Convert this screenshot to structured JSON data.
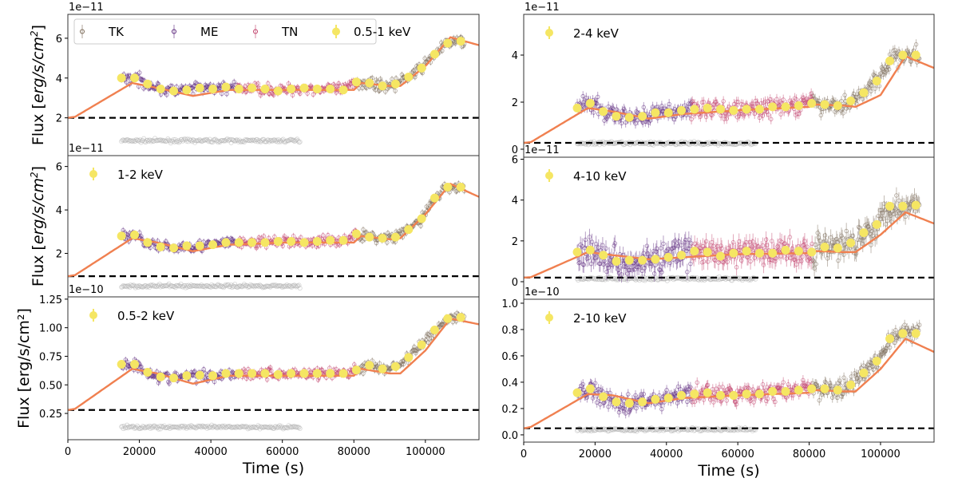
{
  "chart_data": {
    "type": "scatter",
    "xlabel": "Time (s)",
    "ylabel": "Flux [erg/s/cm²]",
    "xlim": [
      0,
      115000
    ],
    "xticks": [
      0,
      20000,
      40000,
      60000,
      80000,
      100000
    ],
    "legend": {
      "placement": "top-left",
      "entries": [
        "TK",
        "ME",
        "TN",
        "0.5-1 keV"
      ]
    },
    "instruments": [
      {
        "name": "TK",
        "color": "#7b6a58",
        "time_range": [
          81000,
          111000
        ]
      },
      {
        "name": "ME",
        "color": "#5e2a7e",
        "time_range": [
          15000,
          47000
        ]
      },
      {
        "name": "TN",
        "color": "#c0406a",
        "time_range": [
          47000,
          81000
        ]
      }
    ],
    "colors": {
      "binned": "#f5e663",
      "model": "#f08050",
      "background": "#b0b0b0",
      "baseline": "#000000"
    },
    "binned_times": [
      15000,
      18650,
      22300,
      25950,
      29600,
      33250,
      36900,
      40550,
      44200,
      47850,
      51500,
      55150,
      58800,
      62450,
      66100,
      69750,
      73400,
      77050,
      80700,
      84350,
      88000,
      91650,
      95300,
      98950,
      102600,
      106250,
      109900
    ],
    "model_times": [
      0,
      2000,
      18000,
      25000,
      35000,
      45000,
      60000,
      80000,
      82000,
      90000,
      93000,
      100000,
      107000,
      115000
    ],
    "background_time_range": [
      15000,
      65000
    ],
    "panels": [
      {
        "band": "0.5-1 keV",
        "offset": "1e−11",
        "ylim": [
          0.1,
          7.2
        ],
        "yticks": [
          2,
          4,
          6
        ],
        "ytick_labels": [
          "2",
          "4",
          "6"
        ],
        "baseline": 2.0,
        "background_level": 0.85,
        "binned": [
          4.0,
          4.0,
          3.7,
          3.45,
          3.35,
          3.4,
          3.5,
          3.45,
          3.55,
          3.45,
          3.5,
          3.45,
          3.35,
          3.45,
          3.5,
          3.45,
          3.45,
          3.4,
          3.8,
          3.75,
          3.6,
          3.7,
          4.05,
          4.5,
          5.2,
          5.75,
          5.85
        ],
        "model": [
          2.0,
          2.05,
          3.75,
          3.5,
          3.1,
          3.4,
          3.4,
          3.4,
          3.75,
          3.6,
          3.6,
          4.6,
          6.05,
          5.65
        ]
      },
      {
        "band": "1-2 keV",
        "offset": "1e−11",
        "ylim": [
          0,
          6.5
        ],
        "yticks": [
          2,
          4,
          6
        ],
        "ytick_labels": [
          "2",
          "4",
          "6"
        ],
        "baseline": 0.95,
        "background_level": 0.5,
        "binned": [
          2.8,
          2.85,
          2.5,
          2.3,
          2.25,
          2.35,
          2.35,
          2.4,
          2.5,
          2.5,
          2.5,
          2.5,
          2.55,
          2.55,
          2.5,
          2.55,
          2.6,
          2.6,
          2.9,
          2.75,
          2.7,
          2.75,
          3.1,
          3.6,
          4.55,
          5.05,
          5.05
        ],
        "model": [
          0.95,
          1.0,
          2.7,
          2.5,
          2.1,
          2.4,
          2.5,
          2.5,
          2.8,
          2.65,
          2.7,
          3.8,
          5.2,
          4.6
        ]
      },
      {
        "band": "0.5-2 keV",
        "offset": "1e−10",
        "ylim": [
          0.02,
          1.27
        ],
        "yticks": [
          0.25,
          0.5,
          0.75,
          1.0,
          1.25
        ],
        "ytick_labels": [
          "0.25",
          "0.50",
          "0.75",
          "1.00",
          "1.25"
        ],
        "baseline": 0.28,
        "background_level": 0.13,
        "binned": [
          0.68,
          0.68,
          0.61,
          0.57,
          0.56,
          0.58,
          0.585,
          0.58,
          0.6,
          0.6,
          0.6,
          0.6,
          0.59,
          0.6,
          0.6,
          0.6,
          0.6,
          0.6,
          0.63,
          0.67,
          0.64,
          0.66,
          0.74,
          0.85,
          0.98,
          1.08,
          1.09
        ],
        "model": [
          0.28,
          0.29,
          0.64,
          0.6,
          0.51,
          0.58,
          0.58,
          0.58,
          0.64,
          0.6,
          0.6,
          0.8,
          1.08,
          1.03
        ]
      },
      {
        "band": "2-4 keV",
        "offset": "1e−11",
        "ylim": [
          -0.34,
          5.73
        ],
        "yticks": [
          0,
          2,
          4
        ],
        "ytick_labels": [
          "0",
          "2",
          "4"
        ],
        "baseline": 0.27,
        "background_level": 0.25,
        "binned": [
          1.75,
          1.95,
          1.6,
          1.4,
          1.35,
          1.4,
          1.55,
          1.55,
          1.65,
          1.7,
          1.75,
          1.7,
          1.65,
          1.7,
          1.7,
          1.8,
          1.8,
          1.85,
          1.95,
          1.9,
          1.85,
          2.05,
          2.4,
          2.9,
          3.75,
          4.0,
          4.0
        ],
        "model": [
          0.27,
          0.3,
          1.75,
          1.6,
          1.3,
          1.5,
          1.65,
          1.8,
          1.9,
          1.85,
          1.8,
          2.3,
          3.95,
          3.45
        ]
      },
      {
        "band": "4-10 keV",
        "offset": "1e−11",
        "ylim": [
          -0.86,
          6.1
        ],
        "yticks": [
          0,
          2,
          4,
          6
        ],
        "ytick_labels": [
          "0",
          "2",
          "4",
          "6"
        ],
        "baseline": 0.2,
        "background_level": 0.15,
        "binned": [
          1.45,
          1.55,
          1.3,
          1.0,
          1.05,
          1.05,
          1.1,
          1.2,
          1.3,
          1.5,
          1.45,
          1.25,
          1.4,
          1.5,
          1.4,
          1.4,
          1.55,
          1.5,
          1.45,
          1.7,
          1.65,
          1.9,
          2.4,
          2.8,
          3.7,
          3.7,
          3.75
        ],
        "model": [
          0.2,
          0.22,
          1.45,
          1.3,
          1.1,
          1.2,
          1.35,
          1.4,
          1.5,
          1.45,
          1.45,
          2.3,
          3.4,
          2.85
        ]
      },
      {
        "band": "2-10 keV",
        "offset": "1e−10",
        "ylim": [
          -0.055,
          1.03
        ],
        "yticks": [
          0,
          0.2,
          0.4,
          0.6,
          0.8,
          1.0
        ],
        "ytick_labels": [
          "0.0",
          "0.2",
          "0.4",
          "0.6",
          "0.8",
          "1.0"
        ],
        "baseline": 0.05,
        "background_level": 0.04,
        "binned": [
          0.32,
          0.35,
          0.29,
          0.25,
          0.24,
          0.25,
          0.27,
          0.28,
          0.3,
          0.31,
          0.32,
          0.3,
          0.3,
          0.31,
          0.31,
          0.33,
          0.33,
          0.34,
          0.35,
          0.35,
          0.34,
          0.38,
          0.47,
          0.56,
          0.73,
          0.77,
          0.77
        ],
        "model": [
          0.05,
          0.06,
          0.31,
          0.3,
          0.24,
          0.28,
          0.3,
          0.32,
          0.34,
          0.33,
          0.33,
          0.5,
          0.73,
          0.63
        ]
      }
    ],
    "xtick_labels": [
      "0",
      "20000",
      "40000",
      "60000",
      "80000",
      "100000"
    ],
    "ylabel_prefix": "Flux [",
    "ylabel_italic": "erg/s/cm",
    "ylabel_sup": "2",
    "ylabel_suffix": "]"
  }
}
